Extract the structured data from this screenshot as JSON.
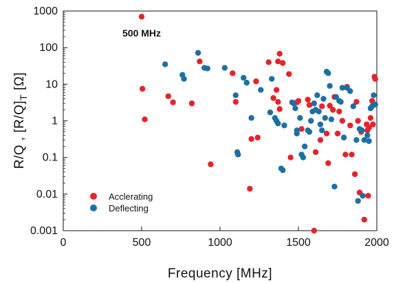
{
  "chart_data": {
    "type": "scatter",
    "title": "",
    "annotation": "500 MHz",
    "xlabel": "Frequency [MHz]",
    "ylabel": "R/Q , [R/Q]T [Ω]",
    "ylabel_parts": {
      "main": "R/Q , [R/Q]",
      "subscript": "T",
      "unit": " [Ω]"
    },
    "xlim": [
      0,
      2000
    ],
    "ylim": [
      0.001,
      1000
    ],
    "yscale": "log",
    "x_ticks": [
      "0",
      "500",
      "1000",
      "1500",
      "2000"
    ],
    "y_ticks": [
      "0.001",
      "0.01",
      "0.1",
      "1",
      "10",
      "100",
      "1000"
    ],
    "grid": false,
    "legend_position": "bottom-left",
    "colors": {
      "accelerating": "#e3242b",
      "deflecting": "#1d6fa5"
    },
    "series": [
      {
        "name": "Acclerating",
        "points": [
          [
            500,
            700
          ],
          [
            505,
            7.5
          ],
          [
            520,
            1.1
          ],
          [
            670,
            4.7
          ],
          [
            700,
            3.2
          ],
          [
            820,
            3.0
          ],
          [
            870,
            42
          ],
          [
            940,
            0.065
          ],
          [
            1080,
            20
          ],
          [
            1100,
            3.3
          ],
          [
            1190,
            0.014
          ],
          [
            1200,
            0.32
          ],
          [
            1230,
            12
          ],
          [
            1240,
            0.35
          ],
          [
            1310,
            40
          ],
          [
            1340,
            4.2
          ],
          [
            1360,
            7
          ],
          [
            1370,
            3.3
          ],
          [
            1380,
            68
          ],
          [
            1370,
            42
          ],
          [
            1380,
            2.1
          ],
          [
            1400,
            38
          ],
          [
            1440,
            19
          ],
          [
            1450,
            0.1
          ],
          [
            1490,
            3.2
          ],
          [
            1500,
            3.5
          ],
          [
            1520,
            0.6
          ],
          [
            1560,
            3.8
          ],
          [
            1570,
            2.7
          ],
          [
            1600,
            0.001
          ],
          [
            1610,
            0.14
          ],
          [
            1640,
            0.3
          ],
          [
            1650,
            2.5
          ],
          [
            1680,
            0.45
          ],
          [
            1690,
            0.07
          ],
          [
            1700,
            2.6
          ],
          [
            1720,
            2.0
          ],
          [
            1730,
            4.5
          ],
          [
            1750,
            0.45
          ],
          [
            1760,
            1.8
          ],
          [
            1780,
            1.0
          ],
          [
            1800,
            0.12
          ],
          [
            1810,
            8.5
          ],
          [
            1830,
            0.75
          ],
          [
            1840,
            0.12
          ],
          [
            1860,
            0.035
          ],
          [
            1870,
            3.3
          ],
          [
            1880,
            1.0
          ],
          [
            1890,
            0.011
          ],
          [
            1900,
            0.5
          ],
          [
            1920,
            0.002
          ],
          [
            1935,
            0.8
          ],
          [
            1940,
            0.55
          ],
          [
            1945,
            0.009
          ],
          [
            1950,
            0.65
          ],
          [
            1960,
            1.2
          ],
          [
            1970,
            3.5
          ],
          [
            1975,
            0.8
          ],
          [
            1985,
            16
          ],
          [
            1990,
            14
          ]
        ]
      },
      {
        "name": "Deflecting",
        "points": [
          [
            650,
            35
          ],
          [
            760,
            18
          ],
          [
            770,
            14
          ],
          [
            860,
            72
          ],
          [
            900,
            28
          ],
          [
            920,
            27
          ],
          [
            1030,
            28
          ],
          [
            1100,
            5.0
          ],
          [
            1110,
            0.14
          ],
          [
            1115,
            0.12
          ],
          [
            1150,
            15
          ],
          [
            1170,
            11
          ],
          [
            1200,
            1.2
          ],
          [
            1260,
            7
          ],
          [
            1320,
            1.7
          ],
          [
            1330,
            14
          ],
          [
            1350,
            1.2
          ],
          [
            1360,
            1.0
          ],
          [
            1370,
            0.85
          ],
          [
            1390,
            0.05
          ],
          [
            1400,
            0.045
          ],
          [
            1410,
            0.75
          ],
          [
            1460,
            3.2
          ],
          [
            1470,
            3.0
          ],
          [
            1480,
            2.2
          ],
          [
            1490,
            0.55
          ],
          [
            1490,
            0.45
          ],
          [
            1510,
            1.2
          ],
          [
            1520,
            0.12
          ],
          [
            1530,
            0.1
          ],
          [
            1540,
            0.2
          ],
          [
            1560,
            0.55
          ],
          [
            1570,
            0.5
          ],
          [
            1580,
            1.0
          ],
          [
            1590,
            1.8
          ],
          [
            1600,
            3.0
          ],
          [
            1610,
            2.0
          ],
          [
            1620,
            5.0
          ],
          [
            1630,
            1.8
          ],
          [
            1640,
            0.8
          ],
          [
            1650,
            0.55
          ],
          [
            1660,
            4.0
          ],
          [
            1670,
            1.2
          ],
          [
            1680,
            22
          ],
          [
            1690,
            20
          ],
          [
            1700,
            9.0
          ],
          [
            1710,
            1.1
          ],
          [
            1730,
            0.016
          ],
          [
            1740,
            4.5
          ],
          [
            1760,
            3.5
          ],
          [
            1770,
            3.3
          ],
          [
            1780,
            8.0
          ],
          [
            1790,
            0.35
          ],
          [
            1810,
            8.0
          ],
          [
            1830,
            6.5
          ],
          [
            1850,
            2.5
          ],
          [
            1870,
            0.3
          ],
          [
            1880,
            0.0065
          ],
          [
            1890,
            0.6
          ],
          [
            1905,
            0.55
          ],
          [
            1910,
            0.009
          ],
          [
            1920,
            0.3
          ],
          [
            1940,
            0.4
          ],
          [
            1950,
            0.28
          ],
          [
            1960,
            2.2
          ],
          [
            1970,
            2.5
          ],
          [
            1980,
            5.0
          ],
          [
            1990,
            2.8
          ]
        ]
      }
    ]
  }
}
